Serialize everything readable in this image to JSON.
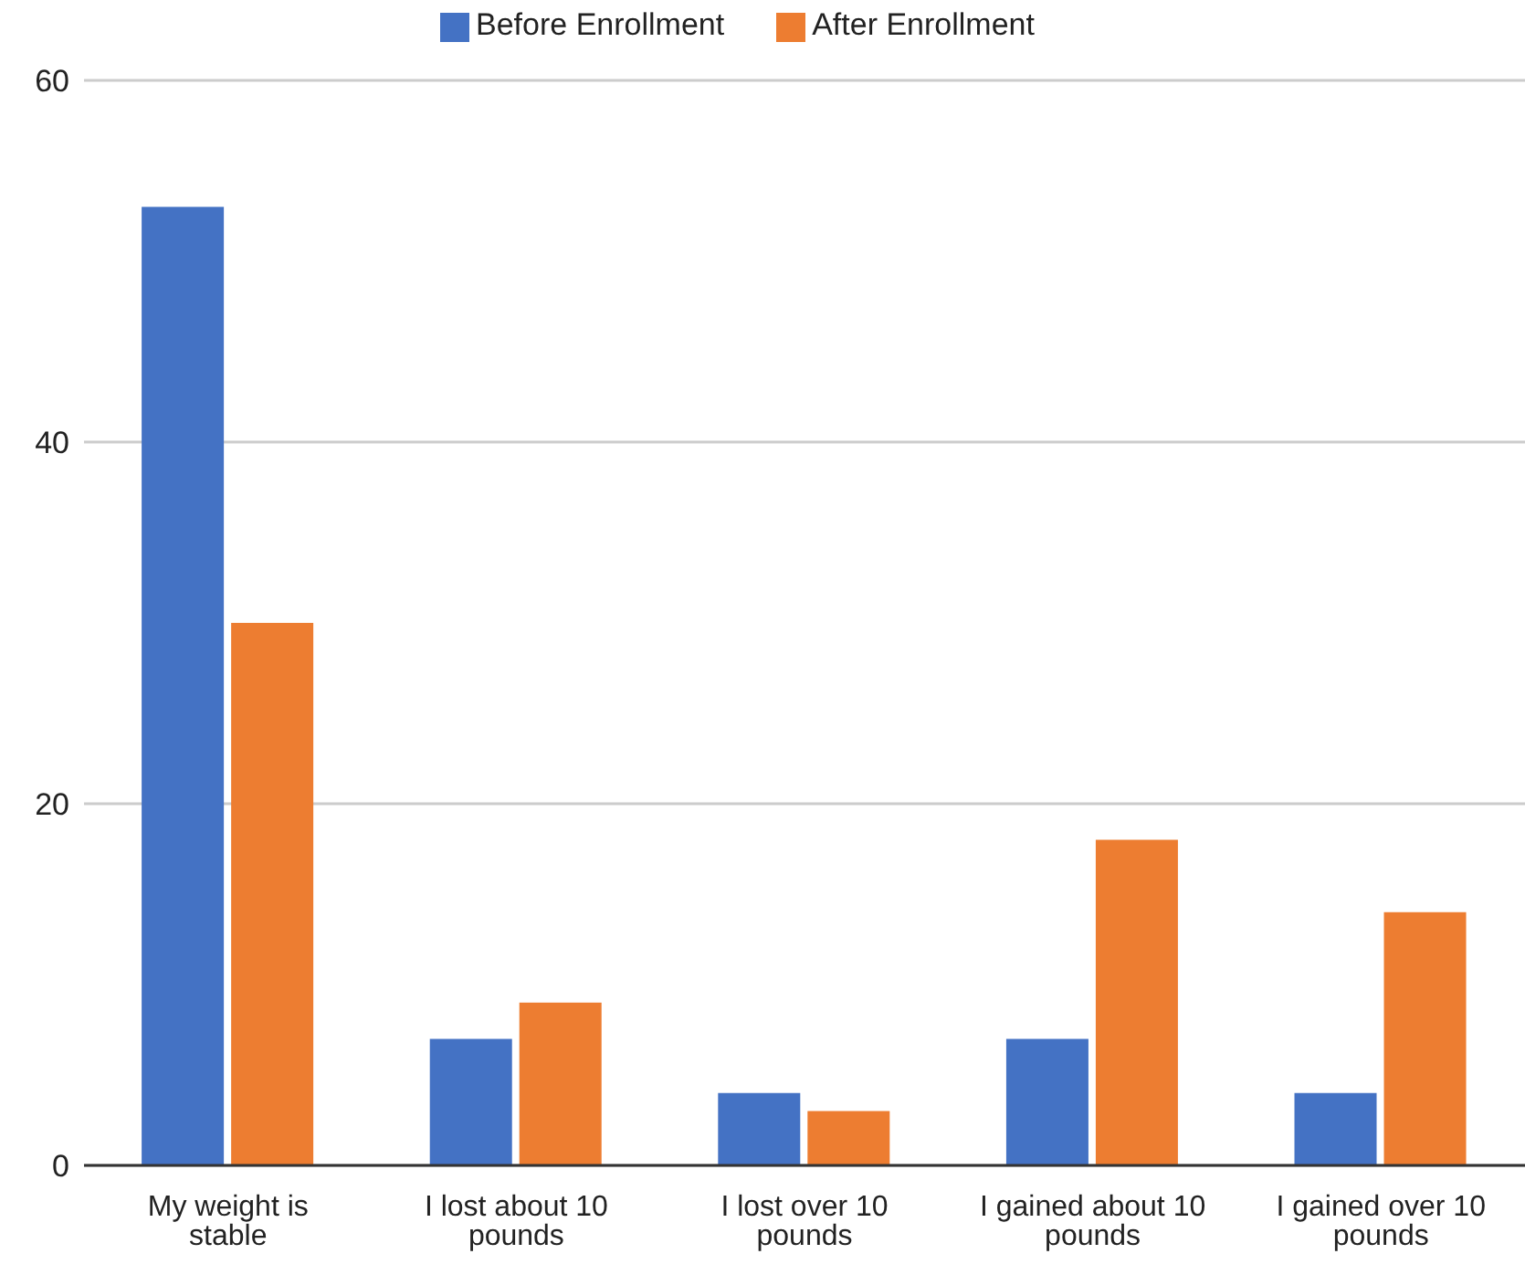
{
  "chart_data": {
    "type": "bar",
    "categories": [
      "My weight is stable",
      "I lost about 10 pounds",
      "I lost over 10 pounds",
      "I gained about 10 pounds",
      "I gained over 10 pounds"
    ],
    "series": [
      {
        "name": "Before Enrollment",
        "color": "#4472c4",
        "values": [
          53,
          7,
          4,
          7,
          4
        ]
      },
      {
        "name": "After Enrollment",
        "color": "#ed7d31",
        "values": [
          30,
          9,
          3,
          18,
          14
        ]
      }
    ],
    "ylim": [
      0,
      60
    ],
    "yticks": [
      0,
      20,
      40,
      60
    ],
    "grid": "y",
    "legend": "top"
  }
}
